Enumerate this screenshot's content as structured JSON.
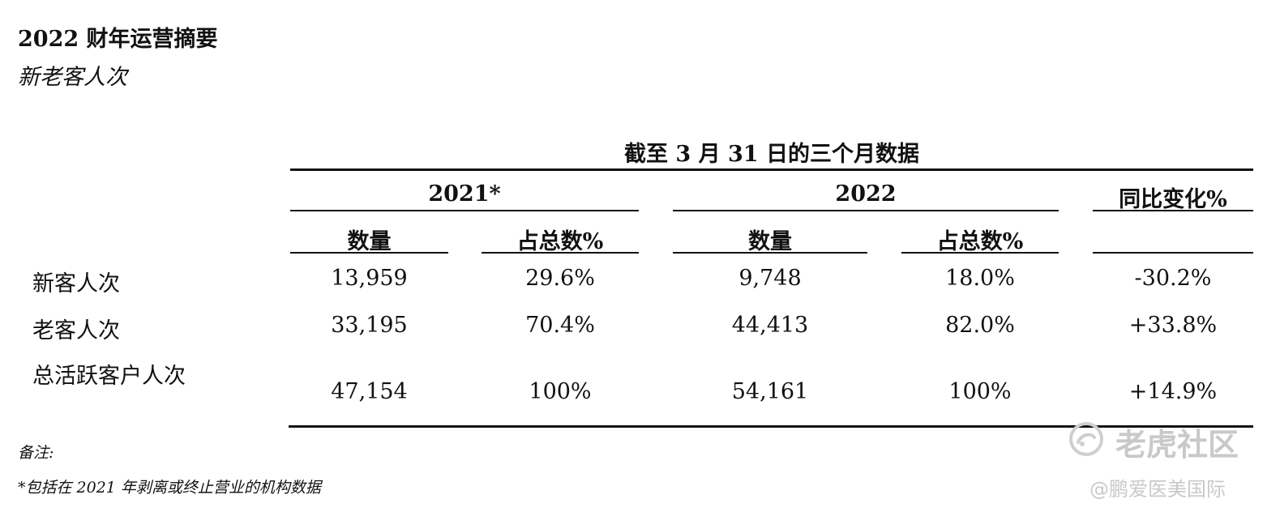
{
  "document": {
    "title": "2022 财年运营摘要",
    "subtitle": "新老客人次"
  },
  "table": {
    "period_header": "截至 3 月 31 日的三个月数据",
    "year_headers": {
      "y2021": "2021*",
      "y2022": "2022",
      "yoy": "同比变化%"
    },
    "sub_headers": {
      "count_2021": "数量",
      "share_2021": "占总数%",
      "count_2022": "数量",
      "share_2022": "占总数%"
    },
    "rows": [
      {
        "label": "新客人次",
        "count_2021": "13,959",
        "share_2021": "29.6%",
        "count_2022": "9,748",
        "share_2022": "18.0%",
        "yoy": "-30.2%"
      },
      {
        "label": "老客人次",
        "count_2021": "33,195",
        "share_2021": "70.4%",
        "count_2022": "44,413",
        "share_2022": "82.0%",
        "yoy": "+33.8%"
      },
      {
        "label": "总活跃客户人次",
        "count_2021": "47,154",
        "share_2021": "100%",
        "count_2022": "54,161",
        "share_2022": "100%",
        "yoy": "+14.9%"
      }
    ]
  },
  "notes": {
    "heading": "备注:",
    "footnote": "*包括在 2021 年剥离或终止营业的机构数据"
  },
  "watermark": {
    "brand": "老虎社区",
    "account": "@鹏爱医美国际"
  }
}
